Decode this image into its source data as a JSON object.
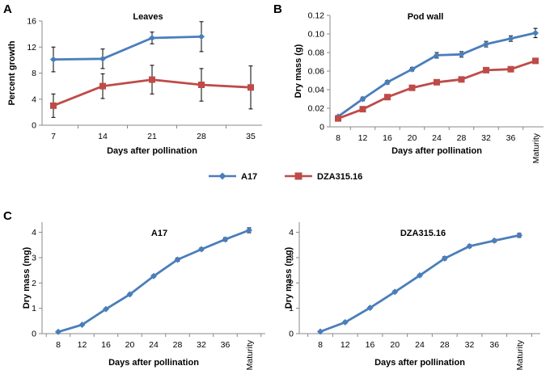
{
  "panel_labels": [
    "A",
    "B",
    "C"
  ],
  "legend": [
    {
      "name": "A17",
      "color": "#4a7ebb",
      "marker": "diamond"
    },
    {
      "name": "DZA315.16",
      "color": "#be4b48",
      "marker": "square"
    }
  ],
  "chart_data": [
    {
      "id": "A",
      "type": "line",
      "title": "Leaves",
      "xlabel": "Days after pollination",
      "ylabel": "Percent growth",
      "categories": [
        "7",
        "14",
        "21",
        "28",
        "35"
      ],
      "yticks": [
        0,
        4,
        8,
        12,
        16
      ],
      "ylim": [
        0,
        16
      ],
      "series": [
        {
          "name": "A17",
          "color": "#4a7ebb",
          "marker": "diamond",
          "values": [
            10.1,
            10.2,
            13.4,
            13.6,
            null
          ],
          "errors": [
            1.9,
            1.5,
            0.9,
            2.3,
            null
          ]
        },
        {
          "name": "DZA315.16",
          "color": "#be4b48",
          "marker": "square",
          "values": [
            3.0,
            6.0,
            7.0,
            6.2,
            5.8
          ],
          "errors": [
            1.8,
            1.9,
            2.2,
            2.5,
            3.3
          ]
        }
      ]
    },
    {
      "id": "B",
      "type": "line",
      "title": "Pod wall",
      "xlabel": "Days after pollination",
      "ylabel": "Dry mass (g)",
      "categories": [
        "8",
        "12",
        "16",
        "20",
        "24",
        "28",
        "32",
        "36",
        "Maturity"
      ],
      "yticks": [
        "0",
        "0.02",
        "0.04",
        "0.06",
        "0.08",
        "0.10",
        "0.12"
      ],
      "ylim": [
        0,
        0.12
      ],
      "series": [
        {
          "name": "A17",
          "color": "#4a7ebb",
          "marker": "diamond",
          "values": [
            0.011,
            0.03,
            0.048,
            0.062,
            0.077,
            0.078,
            0.089,
            0.095,
            0.101
          ],
          "errors": [
            0.001,
            0.002,
            0.002,
            0.002,
            0.003,
            0.003,
            0.003,
            0.003,
            0.005
          ]
        },
        {
          "name": "DZA315.16",
          "color": "#be4b48",
          "marker": "square",
          "values": [
            0.009,
            0.019,
            0.032,
            0.042,
            0.048,
            0.051,
            0.061,
            0.062,
            0.071
          ],
          "errors": [
            0.001,
            0.001,
            0.001,
            0.001,
            0.001,
            0.001,
            0.001,
            0.001,
            0.002
          ]
        }
      ]
    },
    {
      "id": "C1",
      "type": "line",
      "title": "A17",
      "xlabel": "Days after pollination",
      "ylabel": "Dry mass (mg)",
      "categories": [
        "8",
        "12",
        "16",
        "20",
        "24",
        "28",
        "32",
        "36",
        "Maturity"
      ],
      "yticks": [
        0,
        1,
        2,
        3,
        4
      ],
      "ylim": [
        0,
        4.4
      ],
      "series": [
        {
          "name": "A17",
          "color": "#4a7ebb",
          "marker": "diamond",
          "values": [
            0.07,
            0.35,
            0.97,
            1.55,
            2.27,
            2.92,
            3.33,
            3.72,
            4.08
          ],
          "errors": [
            0.01,
            0.03,
            0.04,
            0.05,
            0.05,
            0.07,
            0.06,
            0.07,
            0.1
          ]
        }
      ]
    },
    {
      "id": "C2",
      "type": "line",
      "title": "DZA315.16",
      "xlabel": "Days after pollination",
      "ylabel": "Dry mass (mg)",
      "categories": [
        "8",
        "12",
        "16",
        "20",
        "24",
        "28",
        "32",
        "36",
        "Maturity"
      ],
      "yticks": [
        0,
        1,
        2,
        3,
        4
      ],
      "ylim": [
        0,
        4.4
      ],
      "series": [
        {
          "name": "DZA315.16",
          "color": "#4a7ebb",
          "marker": "diamond",
          "values": [
            0.08,
            0.45,
            1.02,
            1.65,
            2.3,
            2.97,
            3.45,
            3.67,
            3.88
          ],
          "errors": [
            0.01,
            0.05,
            0.05,
            0.05,
            0.05,
            0.07,
            0.06,
            0.06,
            0.08
          ]
        }
      ]
    }
  ]
}
